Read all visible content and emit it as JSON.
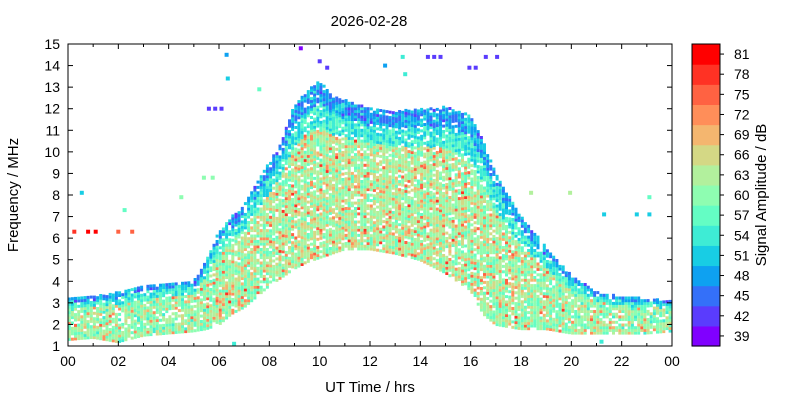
{
  "chart_data": {
    "type": "scatter",
    "title": "2026-02-28",
    "xlabel": "UT Time / hrs",
    "ylabel": "Frequency / MHz",
    "colorbar_label": "Signal Amplitude / dB",
    "xlim": [
      0,
      24
    ],
    "ylim": [
      1,
      15
    ],
    "xticks": [
      "00",
      "02",
      "04",
      "06",
      "08",
      "10",
      "12",
      "14",
      "16",
      "18",
      "20",
      "22",
      "00"
    ],
    "yticks": [
      "1",
      "2",
      "3",
      "4",
      "5",
      "6",
      "7",
      "8",
      "9",
      "10",
      "11",
      "12",
      "13",
      "14",
      "15"
    ],
    "colorbar_ticks": [
      "39",
      "42",
      "45",
      "48",
      "51",
      "54",
      "57",
      "60",
      "63",
      "66",
      "69",
      "72",
      "75",
      "78",
      "81"
    ],
    "colorbar_colors": [
      "#8000ff",
      "#5a3cfd",
      "#3470f9",
      "#0ea1f1",
      "#18cde4",
      "#3eecd5",
      "#64fdc4",
      "#8efdb1",
      "#b2f09d",
      "#d4d885",
      "#f4b66f",
      "#ff8e59",
      "#ff6242",
      "#ff3224",
      "#ff0000"
    ],
    "grid": false,
    "trace_envelope": [
      {
        "x": 0.0,
        "low": 1.3,
        "high": 3.2
      },
      {
        "x": 1.0,
        "low": 1.4,
        "high": 3.3
      },
      {
        "x": 2.0,
        "low": 1.2,
        "high": 3.5
      },
      {
        "x": 3.0,
        "low": 1.5,
        "high": 3.8
      },
      {
        "x": 4.0,
        "low": 1.6,
        "high": 3.9
      },
      {
        "x": 5.0,
        "low": 1.7,
        "high": 4.0
      },
      {
        "x": 5.5,
        "low": 1.8,
        "high": 5.0
      },
      {
        "x": 6.0,
        "low": 2.0,
        "high": 6.3
      },
      {
        "x": 6.5,
        "low": 2.5,
        "high": 7.0
      },
      {
        "x": 7.0,
        "low": 2.8,
        "high": 7.5
      },
      {
        "x": 7.5,
        "low": 3.3,
        "high": 8.5
      },
      {
        "x": 8.0,
        "low": 3.8,
        "high": 9.5
      },
      {
        "x": 8.5,
        "low": 4.2,
        "high": 10.5
      },
      {
        "x": 9.0,
        "low": 4.6,
        "high": 12.2
      },
      {
        "x": 9.5,
        "low": 4.9,
        "high": 12.8
      },
      {
        "x": 10.0,
        "low": 5.1,
        "high": 13.3
      },
      {
        "x": 10.5,
        "low": 5.3,
        "high": 12.6
      },
      {
        "x": 11.0,
        "low": 5.5,
        "high": 12.4
      },
      {
        "x": 12.0,
        "low": 5.5,
        "high": 12.0
      },
      {
        "x": 13.0,
        "low": 5.3,
        "high": 11.9
      },
      {
        "x": 14.0,
        "low": 5.0,
        "high": 12.0
      },
      {
        "x": 15.0,
        "low": 4.4,
        "high": 12.1
      },
      {
        "x": 16.0,
        "low": 3.6,
        "high": 11.7
      },
      {
        "x": 16.5,
        "low": 2.5,
        "high": 10.5
      },
      {
        "x": 17.0,
        "low": 2.0,
        "high": 9.0
      },
      {
        "x": 18.0,
        "low": 1.8,
        "high": 7.0
      },
      {
        "x": 19.0,
        "low": 1.8,
        "high": 5.6
      },
      {
        "x": 20.0,
        "low": 1.6,
        "high": 4.3
      },
      {
        "x": 21.0,
        "low": 1.6,
        "high": 3.5
      },
      {
        "x": 22.0,
        "low": 1.6,
        "high": 3.3
      },
      {
        "x": 23.0,
        "low": 1.6,
        "high": 3.2
      },
      {
        "x": 24.0,
        "low": 1.7,
        "high": 3.1
      }
    ],
    "isolated_points": [
      {
        "x": 0.25,
        "y": 6.3,
        "amp": 78
      },
      {
        "x": 0.8,
        "y": 6.3,
        "amp": 80
      },
      {
        "x": 1.1,
        "y": 6.3,
        "amp": 80
      },
      {
        "x": 2.0,
        "y": 6.3,
        "amp": 76
      },
      {
        "x": 2.55,
        "y": 6.3,
        "amp": 74
      },
      {
        "x": 0.55,
        "y": 8.1,
        "amp": 50
      },
      {
        "x": 2.25,
        "y": 7.3,
        "amp": 58
      },
      {
        "x": 4.5,
        "y": 7.9,
        "amp": 60
      },
      {
        "x": 5.4,
        "y": 8.8,
        "amp": 60
      },
      {
        "x": 5.75,
        "y": 8.8,
        "amp": 60
      },
      {
        "x": 5.6,
        "y": 12.0,
        "amp": 42
      },
      {
        "x": 5.85,
        "y": 12.0,
        "amp": 42
      },
      {
        "x": 6.1,
        "y": 12.0,
        "amp": 42
      },
      {
        "x": 6.3,
        "y": 14.5,
        "amp": 48
      },
      {
        "x": 6.35,
        "y": 13.4,
        "amp": 52
      },
      {
        "x": 7.6,
        "y": 12.9,
        "amp": 56
      },
      {
        "x": 9.25,
        "y": 14.8,
        "amp": 40
      },
      {
        "x": 10.0,
        "y": 14.2,
        "amp": 42
      },
      {
        "x": 10.3,
        "y": 13.9,
        "amp": 42
      },
      {
        "x": 12.6,
        "y": 14.0,
        "amp": 48
      },
      {
        "x": 13.3,
        "y": 14.4,
        "amp": 54
      },
      {
        "x": 14.3,
        "y": 14.4,
        "amp": 42
      },
      {
        "x": 14.55,
        "y": 14.4,
        "amp": 42
      },
      {
        "x": 14.8,
        "y": 14.4,
        "amp": 42
      },
      {
        "x": 15.95,
        "y": 13.9,
        "amp": 42
      },
      {
        "x": 16.2,
        "y": 13.9,
        "amp": 42
      },
      {
        "x": 16.6,
        "y": 14.4,
        "amp": 42
      },
      {
        "x": 17.05,
        "y": 14.4,
        "amp": 42
      },
      {
        "x": 13.4,
        "y": 13.6,
        "amp": 54
      },
      {
        "x": 18.4,
        "y": 8.1,
        "amp": 62
      },
      {
        "x": 19.95,
        "y": 8.1,
        "amp": 64
      },
      {
        "x": 21.3,
        "y": 7.1,
        "amp": 52
      },
      {
        "x": 22.6,
        "y": 7.1,
        "amp": 50
      },
      {
        "x": 23.1,
        "y": 7.1,
        "amp": 50
      },
      {
        "x": 23.1,
        "y": 7.9,
        "amp": 56
      },
      {
        "x": 21.2,
        "y": 1.2,
        "amp": 54
      },
      {
        "x": 6.6,
        "y": 1.1,
        "amp": 54
      }
    ]
  }
}
